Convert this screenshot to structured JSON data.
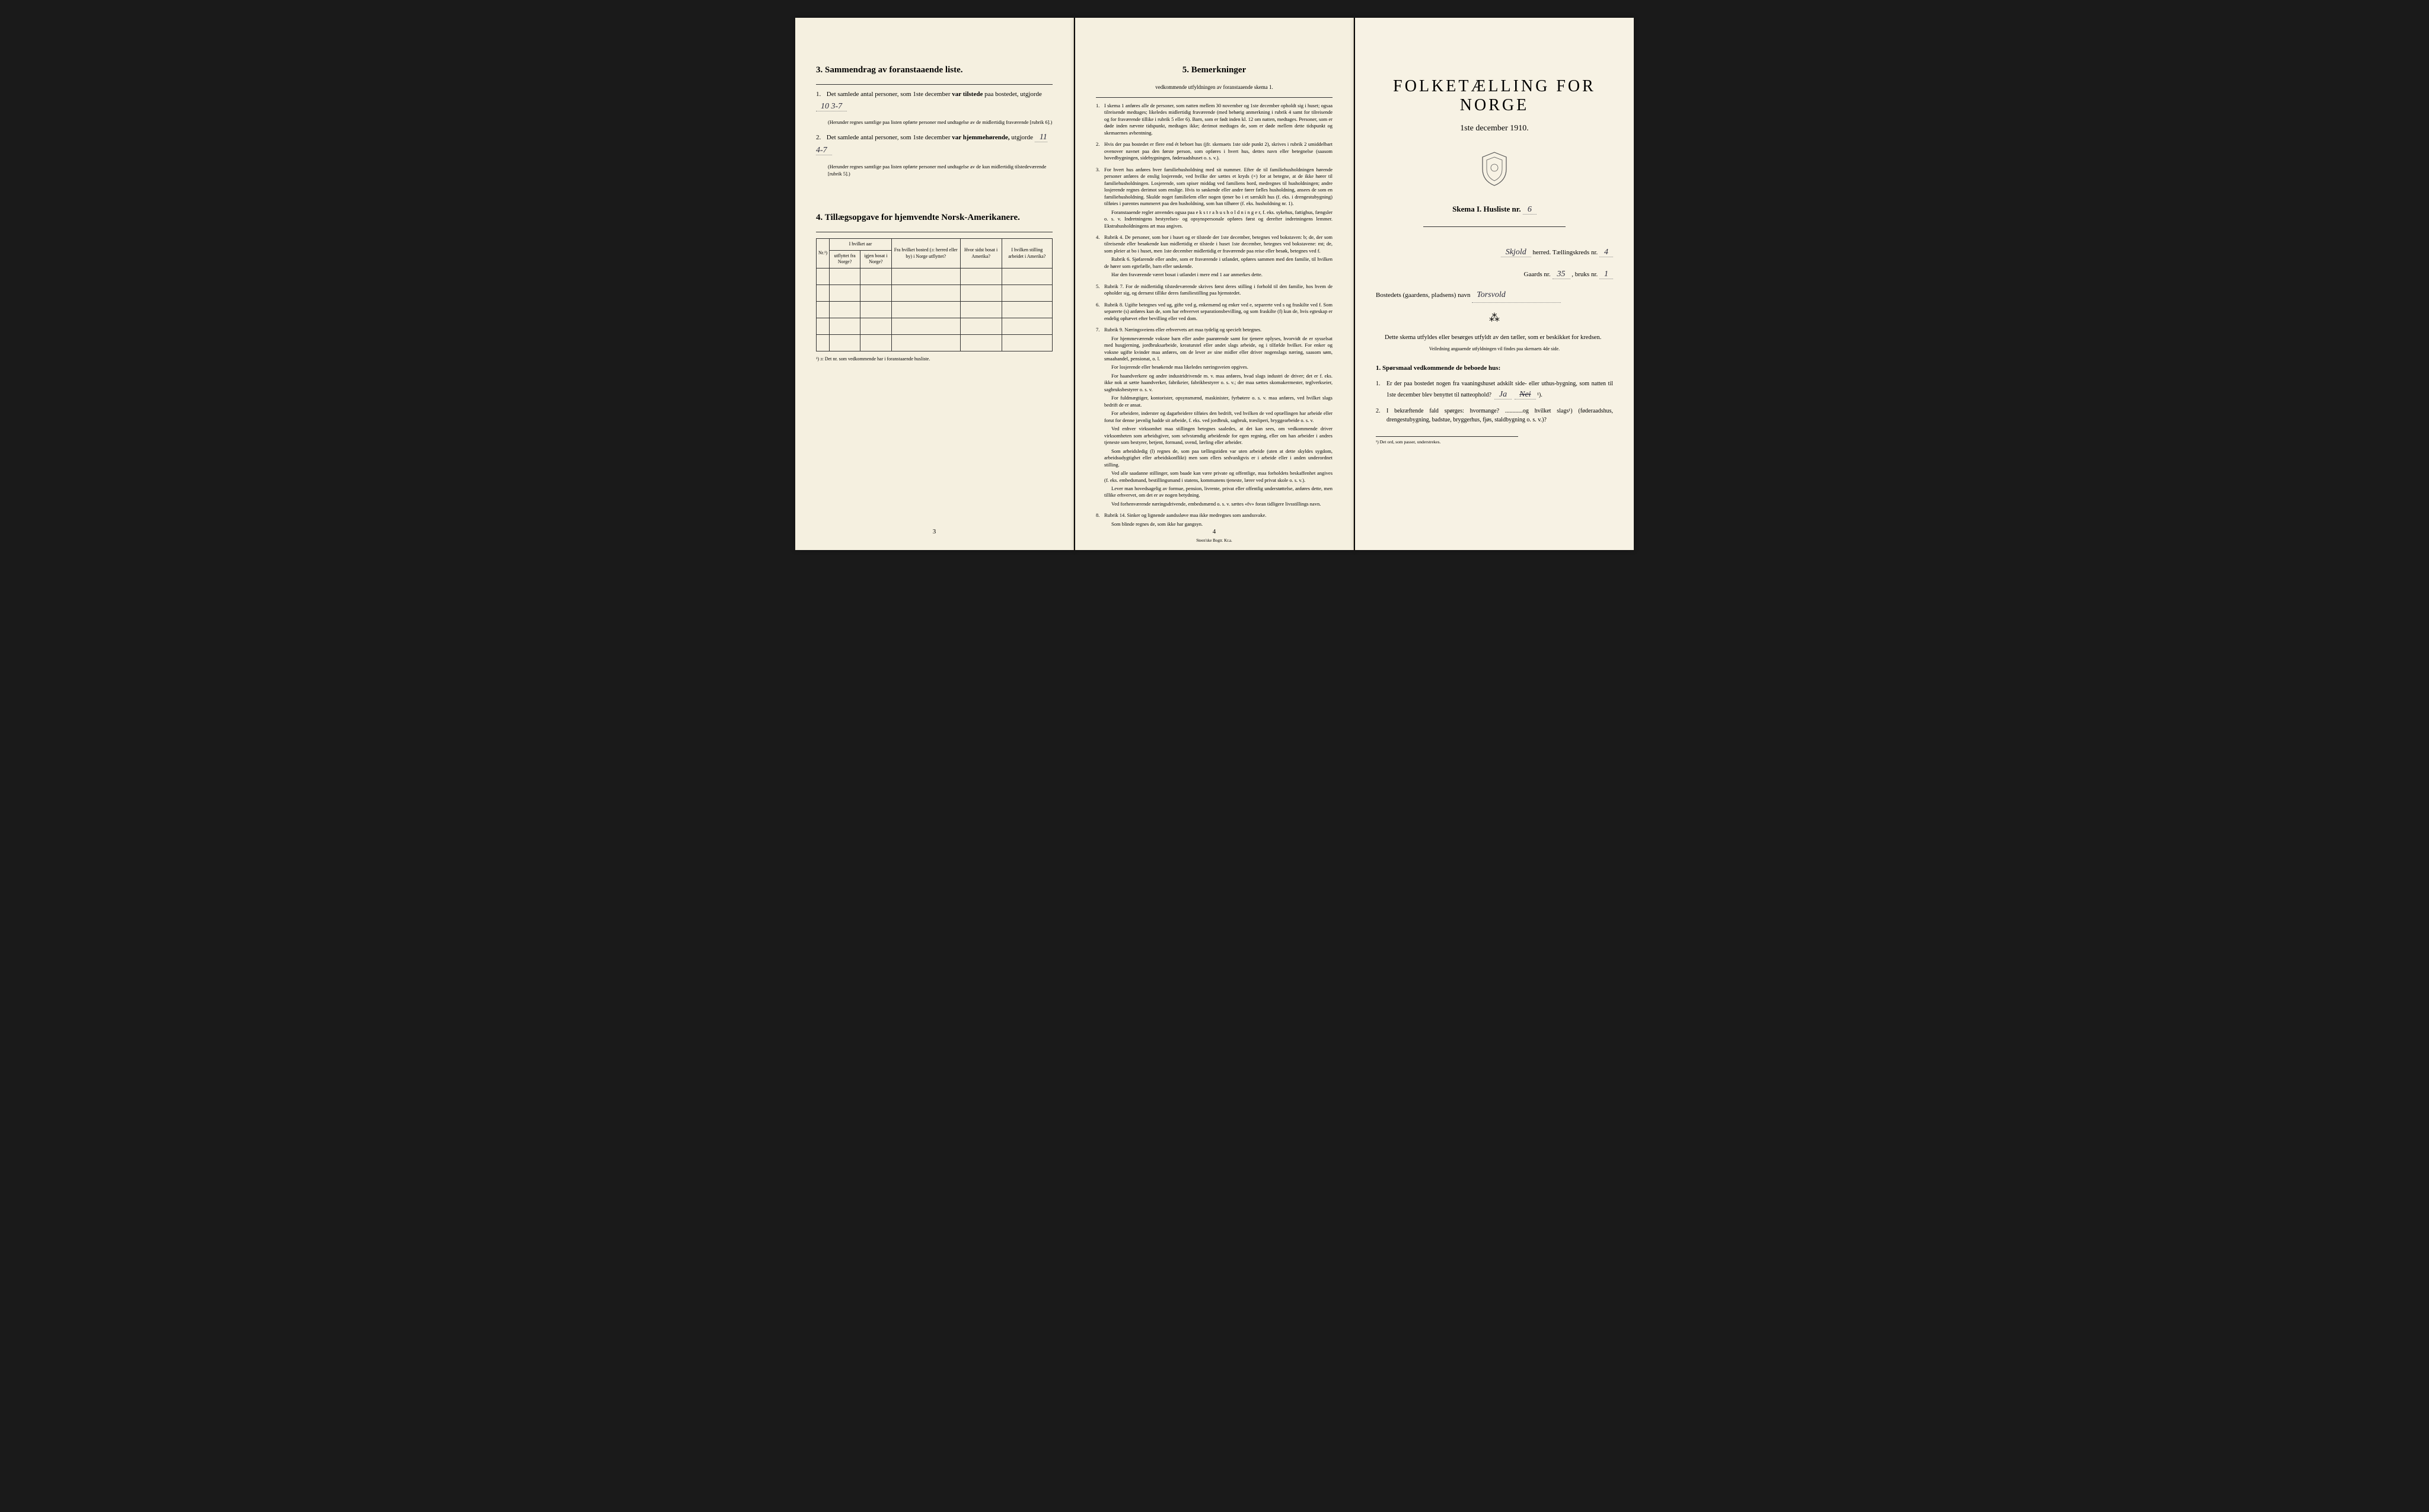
{
  "page3": {
    "section3_title": "3.  Sammendrag av foranstaaende liste.",
    "line1_pre": "Det samlede antal personer, som 1ste december",
    "line1_bold": "var tilstede",
    "line1_post": "paa bostedet, utgjorde",
    "line1_value": "10     3-7",
    "line1_note": "(Herunder regnes samtlige paa listen opførte personer med undtagelse av de midlertidig fraværende [rubrik 6].)",
    "line2_pre": "Det samlede antal personer, som 1ste december",
    "line2_bold": "var hjemmehørende,",
    "line2_post": "utgjorde",
    "line2_value": "11     4-7",
    "line2_note": "(Herunder regnes samtlige paa listen opførte personer med undtagelse av de kun midlertidig tilstedeværende [rubrik 5].)",
    "section4_title": "4.  Tillægsopgave for hjemvendte Norsk-Amerikanere.",
    "table": {
      "headers": {
        "nr": "Nr.¹)",
        "hvilket_aar": "I hvilket aar",
        "utflyttet": "utflyttet fra Norge?",
        "bosat": "igjen bosat i Norge?",
        "fra_bosted": "Fra hvilket bosted (ɔ: herred eller by) i Norge utflyttet?",
        "hvor_sidst": "Hvor sidst bosat i Amerika?",
        "stilling": "I hvilken stilling arbeidet i Amerika?"
      }
    },
    "table_footnote": "¹) ɔ: Det nr. som vedkommende har i foranstaaende husliste.",
    "page_num": "3"
  },
  "page4": {
    "title": "5.   Bemerkninger",
    "subtitle": "vedkommende utfyldningen av foranstaaende skema 1.",
    "items": [
      "I skema 1 anføres alle de personer, som natten mellem 30 november og 1ste december opholdt sig i huset; ogsaa tilreisende medtages; likeledes midlertidig fraværende (med behørig anmerkning i rubrik 4 samt for tilreisende og for fraværende tillike i rubrik 5 eller 6). Barn, som er født inden kl. 12 om natten, medtages. Personer, som er døde inden nævnte tidspunkt, medtages ikke; derimot medtages de, som er døde mellem dette tidspunkt og skemaernes avhentning.",
      "Hvis der paa bostedet er flere end ét beboet hus (jfr. skemaets 1ste side punkt 2), skrives i rubrik 2 umiddelbart ovenover navnet paa den første person, som opføres i hvert hus, dettes navn eller betegnelse (saasom hovedbygningen, sidebygningen, føderaadshuset o. s. v.).",
      "For hvert hus anføres hver familiehusholdning med sit nummer. Efter de til familiehusholdningen hørende personer anføres de enslig losjerende, ved hvilke der sættes et kryds (×) for at betegne, at de ikke hører til familiehusholdningen. Losjerende, som spiser middag ved familiens bord, medregnes til husholdningen; andre losjerende regnes derimot som enslige. Hvis to søskende eller andre fører fælles husholdning, ansees de som en familiehusholdning. Skulde noget familielem eller nogen tjener bo i et særskilt hus (f. eks. i drengestubygning) tilføies i parentes nummeret paa den husholdning, som han tilhører (f. eks. husholdning nr. 1).|Foranstaaende regler anvendes ogsaa paa e k s t r a h u s h o l d n i n g e r, f. eks. sykehus, fattighus, fængsler o. s. v. Indretningens bestyrelses- og opsynspersonale opføres først og derefter indretningens lemmer. Ekstrahusholdningens art maa angives.",
      "Rubrik 4. De personer, som bor i huset og er tilstede der 1ste december, betegnes ved bokstaven: b; de, der som tilreisende eller besøkende kun midlertidig er tilstede i huset 1ste december, betegnes ved bokstavene: mt; de, som pleier at bo i huset, men 1ste december midlertidig er fraværende paa reise eller besøk, betegnes ved f.|Rubrik 6. Sjøfarende eller andre, som er fraværende i utlandet, opføres sammen med den familie, til hvilken de hører som egtefælle, barn eller søskende.|Har den fraværende været bosat i utlandet i mere end 1 aar anmerkes dette.",
      "Rubrik 7. For de midlertidig tilstedeværende skrives først deres stilling i forhold til den familie, hos hvem de opholder sig, og dernæst tillike deres familiestilling paa hjemstedet.",
      "Rubrik 8. Ugifte betegnes ved ug, gifte ved g, enkemænd og enker ved e, separerte ved s og fraskilte ved f. Som separerte (s) anføres kun de, som har erhvervet separationsbevilling, og som fraskilte (f) kun de, hvis egteskap er endelig ophævet efter bevilling eller ved dom.",
      "Rubrik 9. Næringsveiens eller erhvervets art maa tydelig og specielt betegnes.|For hjemmeværende voksne barn eller andre paarørende samt for tjenere oplyses, hvorvidt de er sysselsat med husgjern­ing, jordbruksarbeide, kreaturstel eller andet slags arbeide, og i tilfælde hvilket. For enker og voksne ugifte kvinder maa anføres, om de lever av sine midler eller driver nogenslags næring, saasom søm, smaahandel, pensionat, o. l.|For losjerende eller besøkende maa likeledes næringsveien opgives.|For haandverkere og andre industridrivende m. v. maa anføres, hvad slags industri de driver; det er f. eks. ikke nok at sætte haandverker, fabrikeier, fabrikbestyrer o. s. v.; der maa sættes skomakermester, teglverkseier, sagbruksbestyrer o. s. v.|For fuldmægtiger, kontorister, opsynsmænd, maskinister, fyrbøtere o. s. v. maa anføres, ved hvilket slags bedrift de er ansat.|For arbeidere, inderster og dagarbeidere tilføies den bedrift, ved hvilken de ved optællingen har arbeide eller forut for denne jævnlig hadde sit arbeide, f. eks. ved jordbruk, sagbruk, træsliperi, bryggearbeide o. s. v.|Ved enhver virksomhet maa stillingen betegnes saaledes, at det kan sees, om vedkommende driver virksomheten som arbeidsgiver, som selvstændig arbeidende for egen regning, eller om han arbeider i andres tjeneste som bestyrer, betjent, formand, svend, lærling eller arbeider.|Som arbeidsledig (l) regnes de, som paa tællingstiden var uten arbeide (uten at dette skyldes sygdom, arbeidsudygtighet eller arbeidskonflikt) men som ellers sedvanligvis er i arbeide eller i anden underordnet stilling.|Ved alle saadanne stillinger, som baade kan være private og offentlige, maa forholdets beskaffenhet angives (f. eks. embedsmand, bestillingsmand i statens, kommunens tjeneste, lærer ved privat skole o. s. v.).|Lever man hovedsagelig av formue, pension, livrente, privat eller offentlig understøttelse, anføres dette, men tillike erhvervet, om det er av nogen betydning.|Ved forhenværende næringsdrivende, embedsmænd o. s. v. sættes «fv» foran tidligere livsstillings navn.",
      "Rubrik 14. Sinker og lignende aandssløve maa ikke medregnes som aandssvake.|Som blinde regnes de, som ikke har gangsyn."
    ],
    "page_num": "4",
    "printer": "Steen'ske Bogtr. Kr.a."
  },
  "page1": {
    "main_title": "FOLKETÆLLING FOR NORGE",
    "date_line": "1ste december 1910.",
    "skema_pre": "Skema I.   Husliste nr.",
    "husliste_nr": "6",
    "herred_value": "Skjold",
    "herred_label": "herred.   Tællingskreds nr.",
    "kreds_nr": "4",
    "gaards_label": "Gaards nr.",
    "gaards_nr": "35",
    "bruks_label": ", bruks nr.",
    "bruks_nr": "1",
    "bosted_label": "Bostedets (gaardens, pladsens) navn",
    "bosted_value": "Torsvold",
    "intro1": "Dette skema utfyldes eller besørges utfyldt av den tæller, som er beskikket for kredsen.",
    "veiledning": "Veiledning angaaende utfyldningen vil findes paa skemaets 4de side.",
    "q_header": "1. Spørsmaal vedkommende de beboede hus:",
    "q1": "Er der paa bostedet nogen fra vaaningshuset adskilt side- eller uthus-bygning, som natten til 1ste december blev benyttet til natteophold?",
    "q1_ja": "Ja",
    "q1_nei": "Nei",
    "q1_sup": "¹).",
    "q2": "I bekræftende fald spørges: hvormange? ............og hvilket slags¹) (føderaadshus, drengestubygning, badstue, bryggerhus, fjøs, staldbygning o. s. v.)?",
    "footnote": "¹) Det ord, som passer, understrekes."
  }
}
